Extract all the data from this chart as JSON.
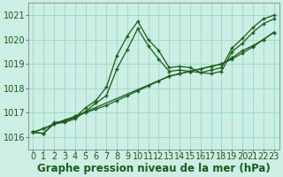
{
  "background_color": "#cceee4",
  "grid_color": "#99ddcc",
  "line_color": "#1a5c1a",
  "title": "Graphe pression niveau de la mer (hPa)",
  "xlim": [
    -0.5,
    23.5
  ],
  "ylim": [
    1015.5,
    1021.5
  ],
  "yticks": [
    1016,
    1017,
    1018,
    1019,
    1020,
    1021
  ],
  "xticks": [
    0,
    1,
    2,
    3,
    4,
    5,
    6,
    7,
    8,
    9,
    10,
    11,
    12,
    13,
    14,
    15,
    16,
    17,
    18,
    19,
    20,
    21,
    22,
    23
  ],
  "series1_x": [
    0,
    1,
    2,
    3,
    4,
    5,
    6,
    7,
    8,
    9,
    10,
    11,
    12,
    13,
    14,
    15,
    16,
    17,
    18,
    19,
    20,
    21,
    22,
    23
  ],
  "series1_y": [
    1016.2,
    1016.15,
    1016.6,
    1016.65,
    1016.8,
    1017.2,
    1017.5,
    1018.05,
    1019.35,
    1020.15,
    1020.75,
    1020.0,
    1019.55,
    1018.85,
    1018.9,
    1018.85,
    1018.65,
    1018.75,
    1018.85,
    1019.65,
    1020.05,
    1020.5,
    1020.85,
    1021.0
  ],
  "series2_x": [
    0,
    1,
    2,
    3,
    4,
    5,
    6,
    7,
    8,
    9,
    10,
    11,
    12,
    13,
    14,
    15,
    17,
    18,
    19,
    20,
    21,
    22,
    23
  ],
  "series2_y": [
    1016.2,
    1016.15,
    1016.55,
    1016.6,
    1016.75,
    1017.05,
    1017.4,
    1017.7,
    1018.8,
    1019.6,
    1020.45,
    1019.75,
    1019.2,
    1018.7,
    1018.75,
    1018.7,
    1018.6,
    1018.7,
    1019.5,
    1019.85,
    1020.3,
    1020.65,
    1020.85
  ],
  "series3_x": [
    0,
    1,
    2,
    3,
    4,
    5,
    6,
    7,
    8,
    9,
    10,
    11,
    12,
    13,
    14,
    15,
    16,
    17,
    18,
    19,
    20,
    21,
    22,
    23
  ],
  "series3_y": [
    1016.2,
    1016.35,
    1016.55,
    1016.7,
    1016.85,
    1017.0,
    1017.15,
    1017.3,
    1017.5,
    1017.7,
    1017.9,
    1018.1,
    1018.3,
    1018.5,
    1018.6,
    1018.7,
    1018.8,
    1018.9,
    1019.0,
    1019.2,
    1019.45,
    1019.7,
    1020.0,
    1020.3
  ],
  "series4_x": [
    0,
    1,
    4,
    13,
    14,
    15,
    17,
    18,
    19,
    20,
    21,
    22,
    23
  ],
  "series4_y": [
    1016.2,
    1016.35,
    1016.85,
    1018.5,
    1018.6,
    1018.7,
    1018.9,
    1019.0,
    1019.25,
    1019.55,
    1019.75,
    1020.0,
    1020.3
  ],
  "title_fontsize": 8.5,
  "tick_fontsize": 7
}
